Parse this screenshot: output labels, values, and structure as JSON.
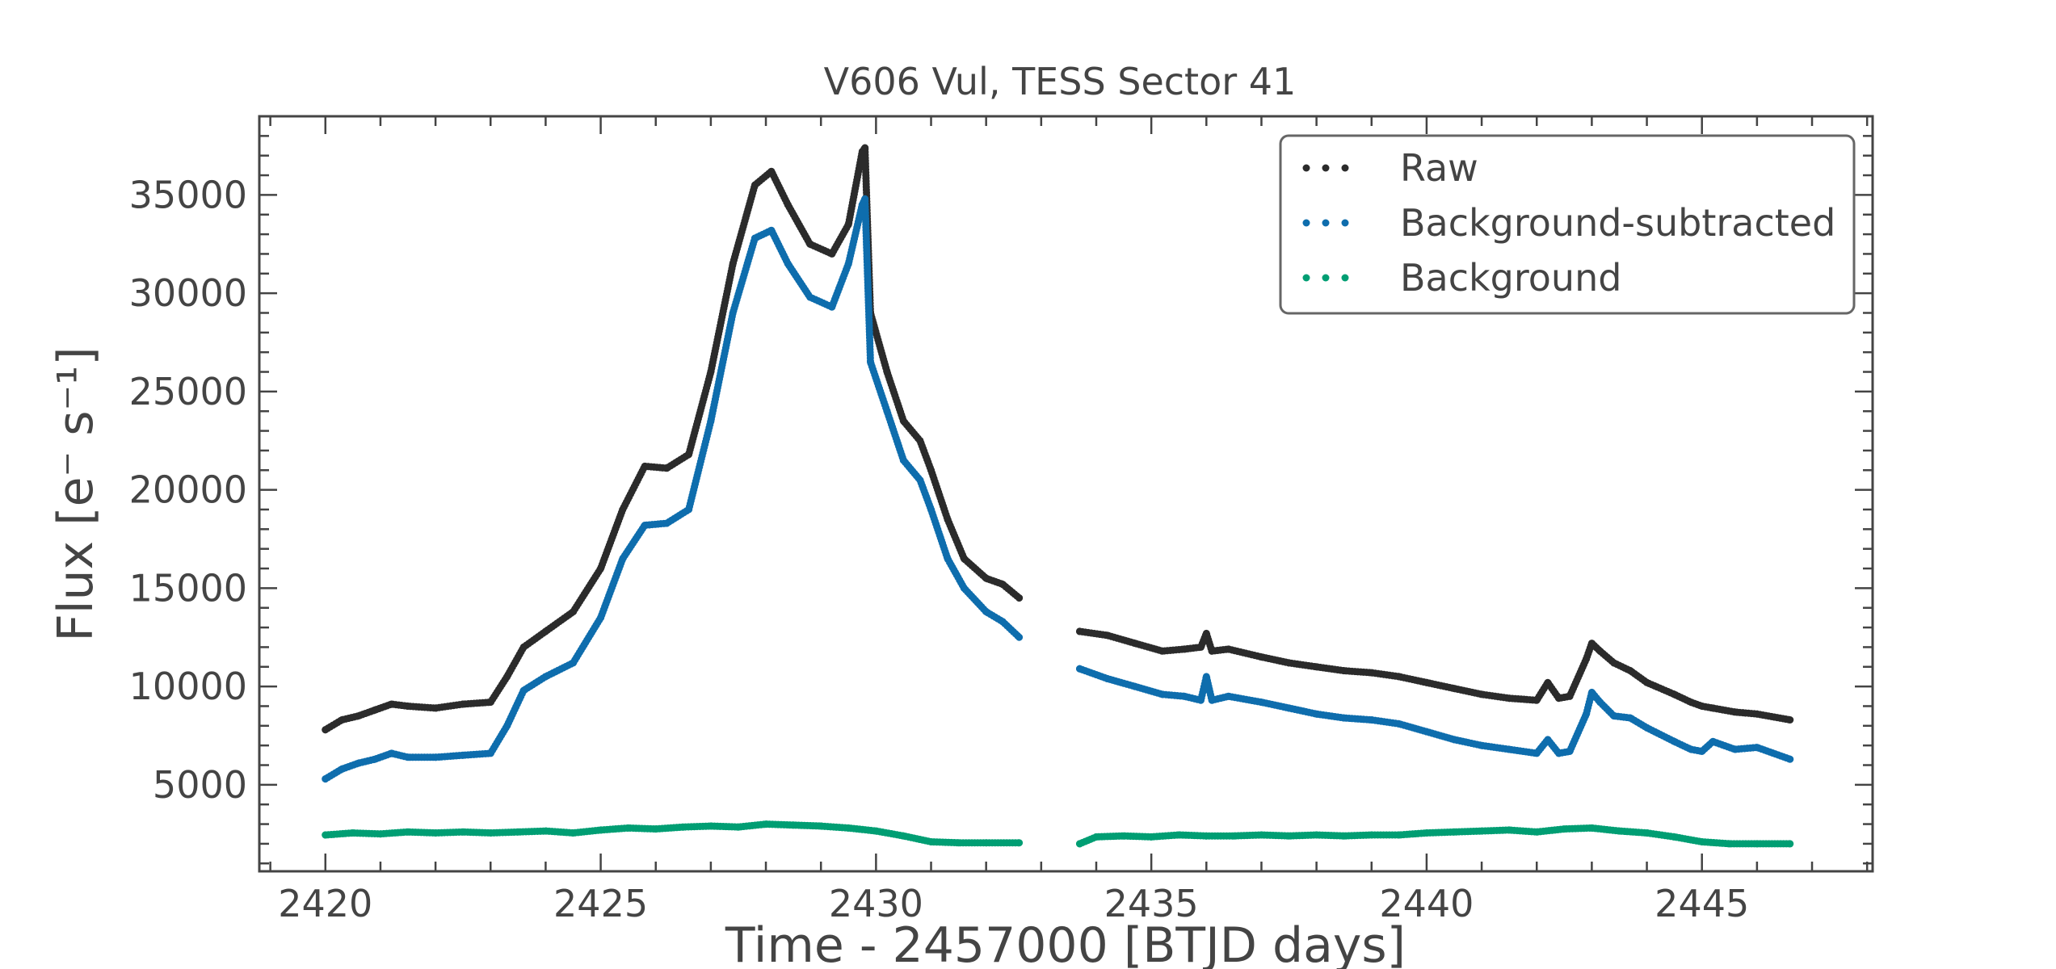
{
  "chart_data": {
    "type": "scatter",
    "title": "V606 Vul, TESS Sector 41",
    "xlabel": "Time - 2457000 [BTJD days]",
    "ylabel": "Flux [e⁻ s⁻¹]",
    "xlim": [
      2418.8,
      2448.1
    ],
    "ylim": [
      600,
      39000
    ],
    "xticks": [
      2420,
      2425,
      2430,
      2435,
      2440,
      2445
    ],
    "xtick_labels": [
      "2420",
      "2425",
      "2430",
      "2435",
      "2440",
      "2445"
    ],
    "yticks": [
      5000,
      10000,
      15000,
      20000,
      25000,
      30000,
      35000
    ],
    "ytick_labels": [
      "5000",
      "10000",
      "15000",
      "20000",
      "25000",
      "30000",
      "35000"
    ],
    "grid": false,
    "legend_position": "top-right",
    "series": [
      {
        "name": "Raw",
        "color": "#2b2b2b",
        "x": [
          2420.0,
          2420.3,
          2420.6,
          2420.9,
          2421.2,
          2421.5,
          2422.0,
          2422.5,
          2423.0,
          2423.3,
          2423.6,
          2424.0,
          2424.5,
          2425.0,
          2425.4,
          2425.8,
          2426.2,
          2426.6,
          2427.0,
          2427.4,
          2427.8,
          2428.1,
          2428.4,
          2428.8,
          2429.2,
          2429.5,
          2429.75,
          2429.8,
          2429.9,
          2430.2,
          2430.5,
          2430.8,
          2431.0,
          2431.3,
          2431.6,
          2432.0,
          2432.3,
          2432.6,
          null,
          2433.7,
          2434.2,
          2434.7,
          2435.2,
          2435.6,
          2435.9,
          2436.0,
          2436.1,
          2436.4,
          2437.0,
          2437.5,
          2438.0,
          2438.5,
          2439.0,
          2439.5,
          2440.0,
          2440.5,
          2441.0,
          2441.5,
          2442.0,
          2442.2,
          2442.4,
          2442.6,
          2442.9,
          2443.0,
          2443.15,
          2443.4,
          2443.7,
          2444.0,
          2444.5,
          2444.8,
          2445.0,
          2445.2,
          2445.6,
          2446.0,
          2446.6
        ],
        "y": [
          7800,
          8300,
          8500,
          8800,
          9100,
          9000,
          8900,
          9100,
          9200,
          10500,
          12000,
          12800,
          13800,
          16000,
          19000,
          21200,
          21100,
          21800,
          26000,
          31500,
          35500,
          36200,
          34500,
          32500,
          32000,
          33500,
          37200,
          37400,
          29000,
          26000,
          23500,
          22500,
          21000,
          18500,
          16500,
          15500,
          15200,
          14500,
          null,
          12800,
          12600,
          12200,
          11800,
          11900,
          12000,
          12700,
          11800,
          11900,
          11500,
          11200,
          11000,
          10800,
          10700,
          10500,
          10200,
          9900,
          9600,
          9400,
          9300,
          10200,
          9400,
          9500,
          11400,
          12200,
          11800,
          11200,
          10800,
          10200,
          9600,
          9200,
          9000,
          8900,
          8700,
          8600,
          8300
        ]
      },
      {
        "name": "Background-subtracted",
        "color": "#0e6dad",
        "x": [
          2420.0,
          2420.3,
          2420.6,
          2420.9,
          2421.2,
          2421.5,
          2422.0,
          2422.5,
          2423.0,
          2423.3,
          2423.6,
          2424.0,
          2424.5,
          2425.0,
          2425.4,
          2425.8,
          2426.2,
          2426.6,
          2427.0,
          2427.4,
          2427.8,
          2428.1,
          2428.4,
          2428.8,
          2429.2,
          2429.5,
          2429.75,
          2429.8,
          2429.9,
          2430.2,
          2430.5,
          2430.8,
          2431.0,
          2431.3,
          2431.6,
          2432.0,
          2432.3,
          2432.6,
          null,
          2433.7,
          2434.2,
          2434.7,
          2435.2,
          2435.6,
          2435.9,
          2436.0,
          2436.1,
          2436.4,
          2437.0,
          2437.5,
          2438.0,
          2438.5,
          2439.0,
          2439.5,
          2440.0,
          2440.5,
          2441.0,
          2441.5,
          2442.0,
          2442.2,
          2442.4,
          2442.6,
          2442.9,
          2443.0,
          2443.15,
          2443.4,
          2443.7,
          2444.0,
          2444.5,
          2444.8,
          2445.0,
          2445.2,
          2445.6,
          2446.0,
          2446.6
        ],
        "y": [
          5300,
          5800,
          6100,
          6300,
          6600,
          6400,
          6400,
          6500,
          6600,
          8000,
          9800,
          10500,
          11200,
          13500,
          16500,
          18200,
          18300,
          19000,
          23500,
          29000,
          32800,
          33200,
          31500,
          29800,
          29300,
          31500,
          34500,
          34800,
          26500,
          24000,
          21500,
          20500,
          19000,
          16500,
          15000,
          13800,
          13300,
          12500,
          null,
          10900,
          10400,
          10000,
          9600,
          9500,
          9300,
          10500,
          9300,
          9500,
          9200,
          8900,
          8600,
          8400,
          8300,
          8100,
          7700,
          7300,
          7000,
          6800,
          6600,
          7300,
          6600,
          6700,
          8600,
          9700,
          9200,
          8500,
          8400,
          7900,
          7200,
          6800,
          6700,
          7200,
          6800,
          6900,
          6300
        ]
      },
      {
        "name": "Background",
        "color": "#009e73",
        "x": [
          2420.0,
          2420.5,
          2421.0,
          2421.5,
          2422.0,
          2422.5,
          2423.0,
          2423.5,
          2424.0,
          2424.5,
          2425.0,
          2425.5,
          2426.0,
          2426.5,
          2427.0,
          2427.5,
          2428.0,
          2428.5,
          2429.0,
          2429.5,
          2430.0,
          2430.5,
          2431.0,
          2431.5,
          2432.0,
          2432.6,
          null,
          2433.7,
          2434.0,
          2434.5,
          2435.0,
          2435.5,
          2436.0,
          2436.5,
          2437.0,
          2437.5,
          2438.0,
          2438.5,
          2439.0,
          2439.5,
          2440.0,
          2440.5,
          2441.0,
          2441.5,
          2442.0,
          2442.5,
          2443.0,
          2443.5,
          2444.0,
          2444.5,
          2445.0,
          2445.5,
          2446.0,
          2446.6
        ],
        "y": [
          2450,
          2550,
          2500,
          2600,
          2550,
          2600,
          2550,
          2600,
          2650,
          2550,
          2700,
          2800,
          2750,
          2850,
          2900,
          2850,
          3000,
          2950,
          2900,
          2800,
          2650,
          2400,
          2100,
          2050,
          2050,
          2050,
          null,
          2000,
          2350,
          2400,
          2350,
          2450,
          2400,
          2400,
          2450,
          2400,
          2450,
          2400,
          2450,
          2450,
          2550,
          2600,
          2650,
          2700,
          2600,
          2750,
          2800,
          2650,
          2550,
          2350,
          2100,
          2000,
          2000,
          2000
        ]
      }
    ]
  }
}
